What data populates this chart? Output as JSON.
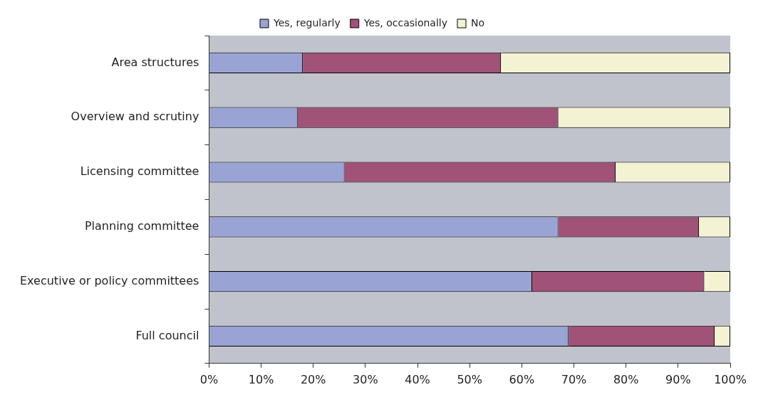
{
  "chart_data": {
    "type": "bar",
    "orientation": "horizontal",
    "stacked": true,
    "categories": [
      "Area structures",
      "Overview and scrutiny",
      "Licensing committee",
      "Planning committee",
      "Executive or policy committees",
      "Full council"
    ],
    "series": [
      {
        "name": "Yes, regularly",
        "color": "#99a4d4",
        "values": [
          18,
          17,
          26,
          67,
          62,
          69
        ]
      },
      {
        "name": "Yes, occasionally",
        "color": "#a05277",
        "values": [
          38,
          50,
          52,
          27,
          33,
          28
        ]
      },
      {
        "name": "No",
        "color": "#f3f2d3",
        "values": [
          44,
          33,
          22,
          6,
          5,
          3
        ]
      }
    ],
    "xlim": [
      0,
      100
    ],
    "xticks": [
      {
        "value": 0,
        "label": "0%"
      },
      {
        "value": 10,
        "label": "10%"
      },
      {
        "value": 20,
        "label": "20%"
      },
      {
        "value": 30,
        "label": "30%"
      },
      {
        "value": 40,
        "label": "40%"
      },
      {
        "value": 50,
        "label": "50%"
      },
      {
        "value": 60,
        "label": "60%"
      },
      {
        "value": 70,
        "label": "70%"
      },
      {
        "value": 80,
        "label": "80%"
      },
      {
        "value": 90,
        "label": "90%"
      },
      {
        "value": 100,
        "label": "100%"
      }
    ],
    "grid": false,
    "legend": "top"
  }
}
